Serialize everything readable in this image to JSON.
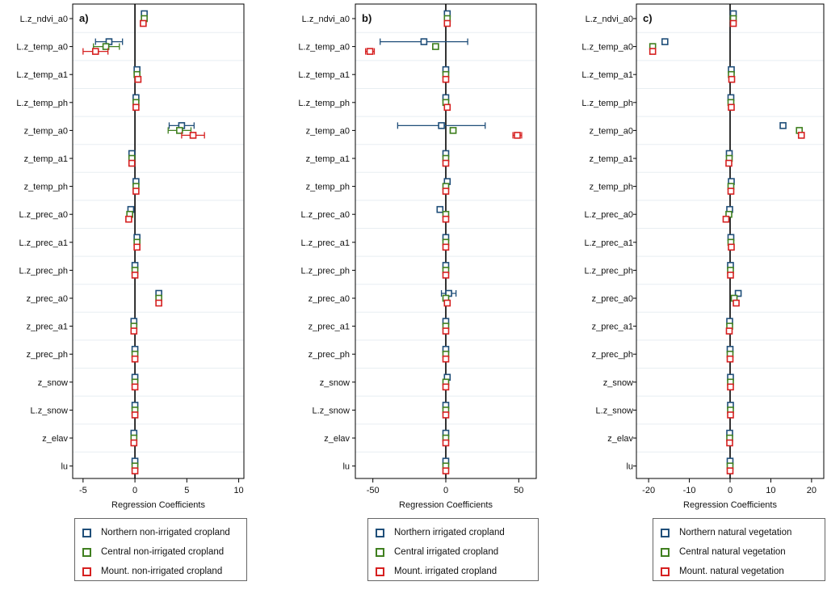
{
  "chart_data": [
    {
      "type": "coefficient-plot",
      "panel_label": "a)",
      "xlabel": "Regression Coefficients",
      "xlim": [
        -6,
        10.5
      ],
      "xticks": [
        -5,
        0,
        5,
        10
      ],
      "categories": [
        "L.z_ndvi_a0",
        "L.z_temp_a0",
        "L.z_temp_a1",
        "L.z_temp_ph",
        "z_temp_a0",
        "z_temp_a1",
        "z_temp_ph",
        "L.z_prec_a0",
        "L.z_prec_a1",
        "L.z_prec_ph",
        "z_prec_a0",
        "z_prec_a1",
        "z_prec_ph",
        "z_snow",
        "L.z_snow",
        "z_elav",
        "lu"
      ],
      "series": [
        {
          "name": "Northern non-irrigated cropland",
          "color": "#1f4e79",
          "values": [
            0.9,
            -2.5,
            0.2,
            0.1,
            4.5,
            -0.3,
            0.1,
            -0.4,
            0.2,
            0.0,
            2.3,
            -0.1,
            0.0,
            0.0,
            0.0,
            -0.1,
            0.0
          ],
          "ci_low": [
            0.8,
            -3.8,
            0.1,
            0.0,
            3.3,
            -0.4,
            0.0,
            -0.5,
            0.1,
            -0.1,
            2.2,
            -0.2,
            -0.1,
            -0.1,
            -0.1,
            -0.2,
            -0.1
          ],
          "ci_high": [
            1.0,
            -1.2,
            0.3,
            0.2,
            5.7,
            -0.2,
            0.2,
            -0.3,
            0.3,
            0.1,
            2.4,
            0.0,
            0.1,
            0.1,
            0.1,
            0.0,
            0.1
          ]
        },
        {
          "name": "Central non-irrigated cropland",
          "color": "#3f7f1f",
          "values": [
            0.9,
            -2.8,
            0.2,
            0.1,
            4.3,
            -0.3,
            0.1,
            -0.5,
            0.2,
            0.0,
            2.3,
            -0.1,
            0.0,
            0.0,
            0.0,
            -0.1,
            0.0
          ],
          "ci_low": [
            0.8,
            -4.0,
            0.1,
            0.0,
            3.2,
            -0.4,
            0.0,
            -0.6,
            0.1,
            -0.1,
            2.2,
            -0.2,
            -0.1,
            -0.1,
            -0.1,
            -0.2,
            -0.1
          ],
          "ci_high": [
            1.0,
            -1.5,
            0.3,
            0.2,
            5.4,
            -0.2,
            0.2,
            -0.4,
            0.3,
            0.1,
            2.4,
            0.0,
            0.1,
            0.1,
            0.1,
            0.0,
            0.1
          ]
        },
        {
          "name": "Mount. non-irrigated cropland",
          "color": "#d62020",
          "values": [
            0.8,
            -3.8,
            0.3,
            0.1,
            5.6,
            -0.3,
            0.1,
            -0.6,
            0.2,
            0.0,
            2.3,
            -0.1,
            0.0,
            0.0,
            0.0,
            -0.1,
            0.0
          ],
          "ci_low": [
            0.7,
            -5.0,
            0.2,
            0.0,
            4.5,
            -0.4,
            0.0,
            -0.7,
            0.1,
            -0.1,
            2.2,
            -0.2,
            -0.1,
            -0.1,
            -0.1,
            -0.2,
            -0.1
          ],
          "ci_high": [
            0.9,
            -2.6,
            0.4,
            0.2,
            6.7,
            -0.2,
            0.2,
            -0.5,
            0.3,
            0.1,
            2.4,
            0.0,
            0.1,
            0.1,
            0.1,
            0.0,
            0.1
          ]
        }
      ]
    },
    {
      "type": "coefficient-plot",
      "panel_label": "b)",
      "xlabel": "Regression Coefficients",
      "xlim": [
        -62,
        62
      ],
      "xticks": [
        -50,
        0,
        50
      ],
      "categories": [
        "L.z_ndvi_a0",
        "L.z_temp_a0",
        "L.z_temp_a1",
        "L.z_temp_ph",
        "z_temp_a0",
        "z_temp_a1",
        "z_temp_ph",
        "L.z_prec_a0",
        "L.z_prec_a1",
        "L.z_prec_ph",
        "z_prec_a0",
        "z_prec_a1",
        "z_prec_ph",
        "z_snow",
        "L.z_snow",
        "z_elav",
        "lu"
      ],
      "series": [
        {
          "name": "Northern irrigated cropland",
          "color": "#1f4e79",
          "values": [
            1,
            -15,
            0,
            0,
            -3,
            0,
            1,
            -4,
            0,
            0,
            2,
            0,
            0,
            1,
            0,
            0,
            0
          ],
          "ci_low": [
            0,
            -45,
            -1,
            -1,
            -33,
            -1,
            0,
            -6,
            -1,
            -1,
            -3,
            -1,
            -1,
            0,
            -1,
            -1,
            -1
          ],
          "ci_high": [
            2,
            15,
            1,
            1,
            27,
            1,
            2,
            -2,
            1,
            1,
            7,
            1,
            1,
            2,
            1,
            1,
            1
          ],
          "ci_caps": [
            false,
            true,
            false,
            false,
            true,
            false,
            false,
            true,
            false,
            false,
            true,
            false,
            false,
            false,
            false,
            false,
            false
          ]
        },
        {
          "name": "Central irrigated cropland",
          "color": "#3f7f1f",
          "values": [
            1,
            -7,
            0,
            0,
            5,
            0,
            0,
            0,
            0,
            0,
            0,
            0,
            0,
            0,
            0,
            0,
            0
          ],
          "ci_low": [
            0,
            -9,
            -1,
            -1,
            3,
            -1,
            -1,
            -1,
            -1,
            -1,
            -1,
            -1,
            -1,
            -1,
            -1,
            -1,
            -1
          ],
          "ci_high": [
            2,
            -5,
            1,
            1,
            7,
            1,
            1,
            1,
            1,
            1,
            1,
            1,
            1,
            1,
            1,
            1,
            1
          ]
        },
        {
          "name": "Mount. irrigated cropland",
          "color": "#d62020",
          "values": [
            1,
            -52,
            0,
            1,
            49,
            0,
            0,
            0,
            0,
            0,
            1,
            0,
            0,
            0,
            0,
            0,
            0
          ],
          "ci_low": [
            0,
            -55,
            -1,
            0,
            46,
            -1,
            -1,
            -1,
            -1,
            -1,
            0,
            -1,
            -1,
            -1,
            -1,
            -1,
            -1
          ],
          "ci_high": [
            2,
            -49,
            1,
            2,
            52,
            1,
            1,
            1,
            1,
            1,
            2,
            1,
            1,
            1,
            1,
            1,
            1
          ]
        }
      ]
    },
    {
      "type": "coefficient-plot",
      "panel_label": "c)",
      "xlabel": "Regression Coefficients",
      "xlim": [
        -23,
        23
      ],
      "xticks": [
        -20,
        -10,
        0,
        10,
        20
      ],
      "categories": [
        "L.z_ndvi_a0",
        "L.z_temp_a0",
        "L.z_temp_a1",
        "L.z_temp_ph",
        "z_temp_a0",
        "z_temp_a1",
        "z_temp_ph",
        "L.z_prec_a0",
        "L.z_prec_a1",
        "L.z_prec_ph",
        "z_prec_a0",
        "z_prec_a1",
        "z_prec_ph",
        "z_snow",
        "L.z_snow",
        "z_elav",
        "lu"
      ],
      "series": [
        {
          "name": "Northern natural vegetation",
          "color": "#1f4e79",
          "values": [
            0.8,
            -16.0,
            0.3,
            0.2,
            13.0,
            -0.2,
            0.3,
            -0.1,
            0.2,
            0.1,
            2.0,
            -0.1,
            0.0,
            0.1,
            0.1,
            -0.1,
            0.0
          ],
          "ci_low": [
            0.5,
            -16.5,
            0.0,
            -0.1,
            12.5,
            -0.5,
            0.0,
            -0.4,
            -0.1,
            -0.2,
            1.7,
            -0.4,
            -0.3,
            -0.2,
            -0.2,
            -0.4,
            -0.3
          ],
          "ci_high": [
            1.1,
            -15.5,
            0.6,
            0.5,
            13.5,
            0.1,
            0.6,
            0.2,
            0.5,
            0.4,
            2.3,
            0.2,
            0.3,
            0.4,
            0.4,
            0.2,
            0.3
          ]
        },
        {
          "name": "Central natural vegetation",
          "color": "#3f7f1f",
          "values": [
            0.8,
            -19.0,
            0.3,
            0.2,
            17.0,
            -0.2,
            0.2,
            -0.3,
            0.2,
            0.1,
            1.0,
            -0.1,
            0.0,
            0.1,
            0.1,
            -0.1,
            0.0
          ],
          "ci_low": [
            0.5,
            -19.5,
            0.0,
            -0.1,
            16.5,
            -0.5,
            -0.1,
            -0.6,
            -0.1,
            -0.2,
            0.7,
            -0.4,
            -0.3,
            -0.2,
            -0.2,
            -0.4,
            -0.3
          ],
          "ci_high": [
            1.1,
            -18.5,
            0.6,
            0.5,
            17.5,
            0.1,
            0.5,
            0.0,
            0.5,
            0.4,
            1.3,
            0.2,
            0.3,
            0.4,
            0.4,
            0.2,
            0.3
          ]
        },
        {
          "name": "Mount. natural vegetation",
          "color": "#d62020",
          "values": [
            0.8,
            -19.0,
            0.4,
            0.3,
            17.5,
            -0.3,
            0.2,
            -1.0,
            0.3,
            0.1,
            1.5,
            -0.2,
            0.0,
            0.1,
            0.1,
            -0.1,
            0.0
          ],
          "ci_low": [
            0.5,
            -19.5,
            0.1,
            0.0,
            17.0,
            -0.6,
            -0.1,
            -1.3,
            0.0,
            -0.2,
            1.2,
            -0.5,
            -0.3,
            -0.2,
            -0.2,
            -0.4,
            -0.3
          ],
          "ci_high": [
            1.1,
            -18.5,
            0.7,
            0.6,
            18.0,
            0.0,
            0.5,
            -0.7,
            0.6,
            0.4,
            1.8,
            0.1,
            0.3,
            0.4,
            0.4,
            0.2,
            0.3
          ]
        }
      ]
    }
  ]
}
